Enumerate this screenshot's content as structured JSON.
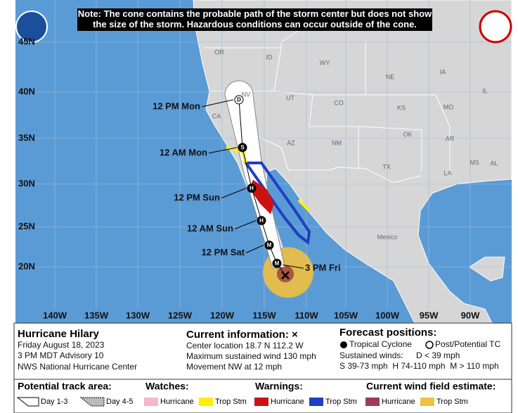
{
  "note": "Note: The cone contains the probable path of the storm center but does not show the size of the storm. Hazardous conditions can occur outside of the cone.",
  "map": {
    "lat_labels": [
      "45N",
      "40N",
      "35N",
      "30N",
      "25N",
      "20N"
    ],
    "lon_labels": [
      "140W",
      "135W",
      "130W",
      "125W",
      "120W",
      "115W",
      "110W",
      "105W",
      "100W",
      "95W",
      "90W"
    ],
    "regions": [
      "OR",
      "ID",
      "WY",
      "NE",
      "IA",
      "IL",
      "NV",
      "UT",
      "CO",
      "KS",
      "MO",
      "CA",
      "AZ",
      "NM",
      "OK",
      "AR",
      "TX",
      "LA",
      "MS",
      "AL",
      "Mexico"
    ],
    "track_labels": [
      "12 PM Mon",
      "12 AM Mon",
      "12 PM Sun",
      "12 AM Sun",
      "12 PM Sat",
      "3 PM Fri"
    ],
    "point_symbols": [
      "D",
      "S",
      "H",
      "H",
      "M",
      "M"
    ]
  },
  "info": {
    "storm": "Hurricane Hilary",
    "details": [
      "Friday August 18, 2023",
      "3 PM MDT Advisory 10",
      "NWS National Hurricane Center"
    ],
    "current_title": "Current information: ×",
    "current": [
      "Center location 18.7 N 112.2 W",
      "Maximum sustained wind 130 mph",
      "Movement NW at 12 mph"
    ],
    "forecast_title": "Forecast positions:",
    "tropical_cyclone": "Tropical Cyclone",
    "post_tc": "Post/Potential TC",
    "sustained_label": "Sustained winds:",
    "depression": "D < 39 mph",
    "categories": "S 39-73 mph  H 74-110 mph  M > 110 mph"
  },
  "legend": {
    "track_area": "Potential track area:",
    "day13": "Day 1-3",
    "day45": "Day 4-5",
    "watches": "Watches:",
    "watch_items": [
      "Hurricane",
      "Trop Stm"
    ],
    "warnings": "Warnings:",
    "warning_items": [
      "Hurricane",
      "Trop Stm"
    ],
    "wind_field": "Current wind field estimate:",
    "wind_items": [
      "Hurricane",
      "Trop Stm"
    ]
  }
}
